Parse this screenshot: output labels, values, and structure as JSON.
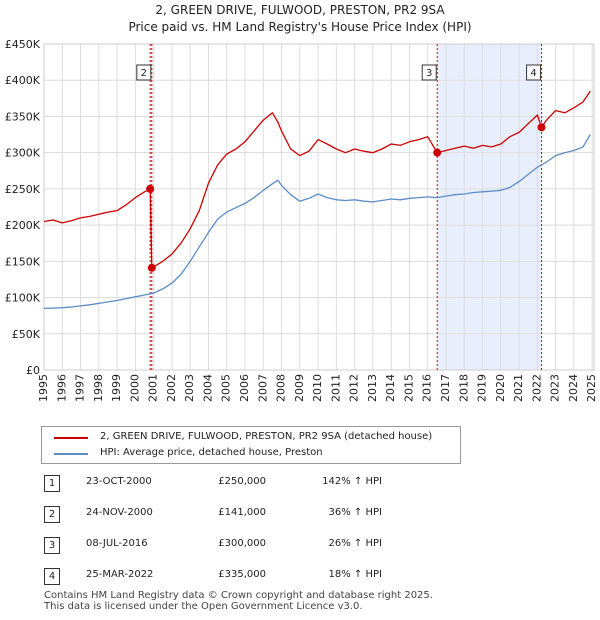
{
  "chart_data": {
    "type": "line",
    "title": "2, GREEN DRIVE, FULWOOD, PRESTON, PR2 9SA",
    "subtitle": "Price paid vs. HM Land Registry's House Price Index (HPI)",
    "xlabel": "",
    "ylabel": "",
    "xlim": [
      1995,
      2025.1
    ],
    "ylim": [
      0,
      450000
    ],
    "y_ticks": [
      0,
      50000,
      100000,
      150000,
      200000,
      250000,
      300000,
      350000,
      400000,
      450000
    ],
    "y_tick_labels": [
      "£0",
      "£50K",
      "£100K",
      "£150K",
      "£200K",
      "£250K",
      "£300K",
      "£350K",
      "£400K",
      "£450K"
    ],
    "x_ticks": [
      1995,
      1996,
      1997,
      1998,
      1999,
      2000,
      2001,
      2002,
      2003,
      2004,
      2005,
      2006,
      2007,
      2008,
      2009,
      2010,
      2011,
      2012,
      2013,
      2014,
      2015,
      2016,
      2017,
      2018,
      2019,
      2020,
      2021,
      2022,
      2023,
      2024,
      2025
    ],
    "x_tick_labels": [
      "1995",
      "1996",
      "1997",
      "1998",
      "1999",
      "2000",
      "2001",
      "2002",
      "2003",
      "2004",
      "2005",
      "2006",
      "2007",
      "2008",
      "2009",
      "2010",
      "2011",
      "2012",
      "2013",
      "2014",
      "2015",
      "2016",
      "2017",
      "2018",
      "2019",
      "2020",
      "2021",
      "2022",
      "2023",
      "2024",
      "2025"
    ],
    "grid": true,
    "shaded_period": [
      2016.52,
      2022.23
    ],
    "series": [
      {
        "name": "2, GREEN DRIVE, FULWOOD, PRESTON, PR2 9SA (detached house)",
        "color": "#cc0000",
        "x": [
          1995.0,
          1995.5,
          1996.0,
          1996.5,
          1997.0,
          1997.5,
          1998.0,
          1998.5,
          1999.0,
          1999.5,
          2000.0,
          2000.5,
          2000.81,
          2000.9,
          2001.5,
          2002.0,
          2002.5,
          2003.0,
          2003.5,
          2004.0,
          2004.5,
          2005.0,
          2005.5,
          2006.0,
          2006.5,
          2007.0,
          2007.5,
          2007.8,
          2008.0,
          2008.5,
          2009.0,
          2009.5,
          2010.0,
          2010.5,
          2011.0,
          2011.5,
          2012.0,
          2012.5,
          2013.0,
          2013.5,
          2014.0,
          2014.5,
          2015.0,
          2015.5,
          2016.0,
          2016.52,
          2017.0,
          2017.5,
          2018.0,
          2018.5,
          2019.0,
          2019.5,
          2020.0,
          2020.5,
          2021.0,
          2021.5,
          2022.0,
          2022.23,
          2022.5,
          2023.0,
          2023.5,
          2024.0,
          2024.5,
          2024.9
        ],
        "values": [
          205000,
          207000,
          203000,
          206000,
          210000,
          212000,
          215000,
          218000,
          220000,
          228000,
          238000,
          246000,
          250000,
          141000,
          150000,
          160000,
          175000,
          195000,
          220000,
          258000,
          283000,
          298000,
          305000,
          315000,
          330000,
          345000,
          355000,
          342000,
          330000,
          305000,
          296000,
          302000,
          318000,
          312000,
          305000,
          300000,
          305000,
          302000,
          300000,
          305000,
          312000,
          310000,
          315000,
          318000,
          322000,
          300000,
          303000,
          306000,
          309000,
          306000,
          310000,
          308000,
          312000,
          322000,
          328000,
          340000,
          352000,
          335000,
          345000,
          358000,
          355000,
          362000,
          370000,
          385000
        ]
      },
      {
        "name": "HPI: Average price, detached house, Preston",
        "color": "#5b8cc8",
        "x": [
          1995.0,
          1995.5,
          1996.0,
          1996.5,
          1997.0,
          1997.5,
          1998.0,
          1998.5,
          1999.0,
          1999.5,
          2000.0,
          2000.5,
          2001.0,
          2001.5,
          2002.0,
          2002.5,
          2003.0,
          2003.5,
          2004.0,
          2004.5,
          2005.0,
          2005.5,
          2006.0,
          2006.5,
          2007.0,
          2007.5,
          2007.8,
          2008.0,
          2008.5,
          2009.0,
          2009.5,
          2010.0,
          2010.5,
          2011.0,
          2011.5,
          2012.0,
          2012.5,
          2013.0,
          2013.5,
          2014.0,
          2014.5,
          2015.0,
          2015.5,
          2016.0,
          2016.5,
          2017.0,
          2017.5,
          2018.0,
          2018.5,
          2019.0,
          2019.5,
          2020.0,
          2020.5,
          2021.0,
          2021.5,
          2022.0,
          2022.5,
          2023.0,
          2023.5,
          2024.0,
          2024.5,
          2024.9
        ],
        "values": [
          85000,
          85500,
          86000,
          87000,
          88500,
          90000,
          92000,
          94000,
          96000,
          98500,
          101000,
          103500,
          106000,
          112000,
          120000,
          132000,
          150000,
          170000,
          190000,
          208000,
          218000,
          224000,
          230000,
          238000,
          248000,
          257000,
          262000,
          255000,
          242000,
          233000,
          237000,
          243000,
          238000,
          235000,
          234000,
          235000,
          233000,
          232000,
          234000,
          236000,
          235000,
          237000,
          238000,
          239000,
          238000,
          240000,
          242000,
          243000,
          245000,
          246000,
          247000,
          248000,
          252000,
          260000,
          270000,
          280000,
          287000,
          296000,
          300000,
          303000,
          308000,
          325000
        ]
      }
    ],
    "markers": [
      {
        "label": "1",
        "x": 2000.81,
        "y": 250000,
        "show_box": false
      },
      {
        "label": "2",
        "x": 2000.9,
        "y": 141000,
        "show_box": true
      },
      {
        "label": "3",
        "x": 2016.52,
        "y": 300000,
        "show_box": true
      },
      {
        "label": "4",
        "x": 2022.23,
        "y": 335000,
        "show_box": true
      }
    ],
    "line_colors": {
      "guide": "#cc0000",
      "shade": "#e8eefb",
      "grid": "#dddddd"
    }
  },
  "legend": {
    "items": [
      {
        "label": "2, GREEN DRIVE, FULWOOD, PRESTON, PR2 9SA (detached house)",
        "color": "#cc0000"
      },
      {
        "label": "HPI: Average price, detached house, Preston",
        "color": "#5b8cc8"
      }
    ]
  },
  "sales": [
    {
      "num": "1",
      "date": "23-OCT-2000",
      "price": "£250,000",
      "hpi": "142% ↑ HPI"
    },
    {
      "num": "2",
      "date": "24-NOV-2000",
      "price": "£141,000",
      "hpi": "36% ↑ HPI"
    },
    {
      "num": "3",
      "date": "08-JUL-2016",
      "price": "£300,000",
      "hpi": "26% ↑ HPI"
    },
    {
      "num": "4",
      "date": "25-MAR-2022",
      "price": "£335,000",
      "hpi": "18% ↑ HPI"
    }
  ],
  "footer": {
    "line1": "Contains HM Land Registry data © Crown copyright and database right 2025.",
    "line2": "This data is licensed under the Open Government Licence v3.0."
  }
}
